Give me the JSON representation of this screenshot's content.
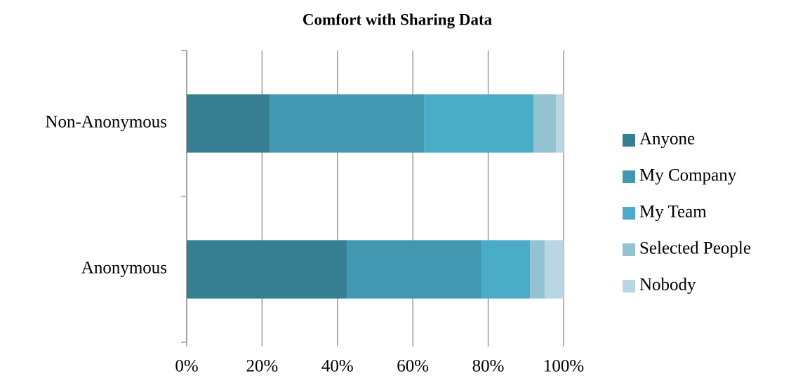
{
  "chart_data": {
    "type": "stacked-bar-horizontal",
    "title": "Comfort with Sharing Data",
    "categories": [
      "Anonymous",
      "Non-Anonymous"
    ],
    "series": [
      {
        "name": "Anyone",
        "color": "#367f93",
        "values": [
          42.5,
          22
        ]
      },
      {
        "name": "My Company",
        "color": "#4298b1",
        "values": [
          35.7,
          41
        ]
      },
      {
        "name": "My Team",
        "color": "#4aacc6",
        "values": [
          12.9,
          29
        ]
      },
      {
        "name": "Selected People",
        "color": "#93c3d3",
        "values": [
          3.9,
          6
        ]
      },
      {
        "name": "Nobody",
        "color": "#b9d7e2",
        "values": [
          5,
          2
        ]
      }
    ],
    "xlim": [
      0,
      100
    ],
    "xticks": [
      {
        "value": 0,
        "label": "0%"
      },
      {
        "value": 20,
        "label": "20%"
      },
      {
        "value": 40,
        "label": "40%"
      },
      {
        "value": 60,
        "label": "60%"
      },
      {
        "value": 80,
        "label": "80%"
      },
      {
        "value": 100,
        "label": "100%"
      }
    ],
    "grid": true,
    "legend": "right"
  }
}
